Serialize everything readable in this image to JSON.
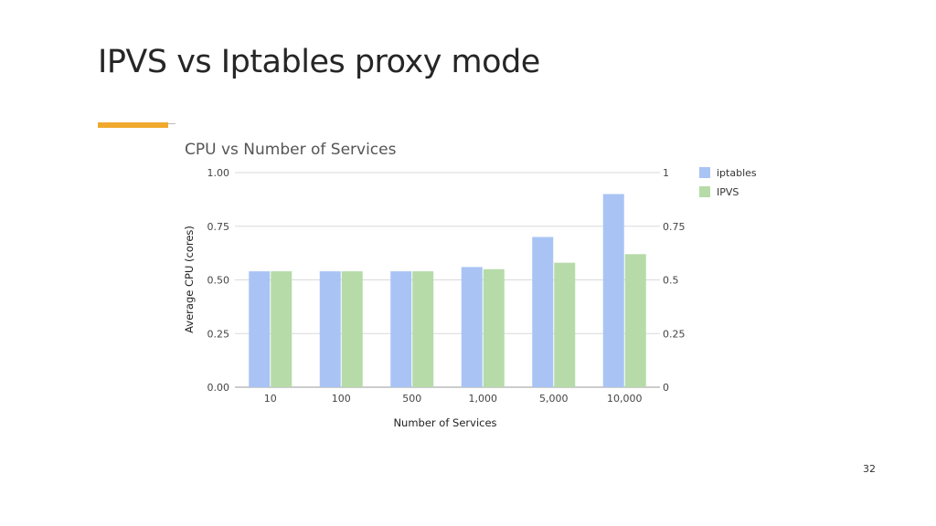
{
  "slide": {
    "title": "IPVS vs Iptables proxy mode",
    "page_number": "32"
  },
  "colors": {
    "accent": "#f0a92e",
    "iptables": "#a9c4f4",
    "ipvs": "#b6dba9",
    "grid": "#d9d9d9",
    "axis": "#999999"
  },
  "chart_data": {
    "type": "bar",
    "title": "CPU vs Number of Services",
    "xlabel": "Number of Services",
    "ylabel": "Average CPU (cores)",
    "categories": [
      "10",
      "100",
      "500",
      "1,000",
      "5,000",
      "10,000"
    ],
    "series": [
      {
        "name": "iptables",
        "values": [
          0.54,
          0.54,
          0.54,
          0.56,
          0.7,
          0.9
        ]
      },
      {
        "name": "IPVS",
        "values": [
          0.54,
          0.54,
          0.54,
          0.55,
          0.58,
          0.62
        ]
      }
    ],
    "ylim": [
      0,
      1
    ],
    "y_ticks_left": [
      "0.00",
      "0.25",
      "0.50",
      "0.75",
      "1.00"
    ],
    "y_ticks_right": [
      "0",
      "0.25",
      "0.5",
      "0.75",
      "1"
    ],
    "grid": true,
    "legend_position": "right"
  }
}
